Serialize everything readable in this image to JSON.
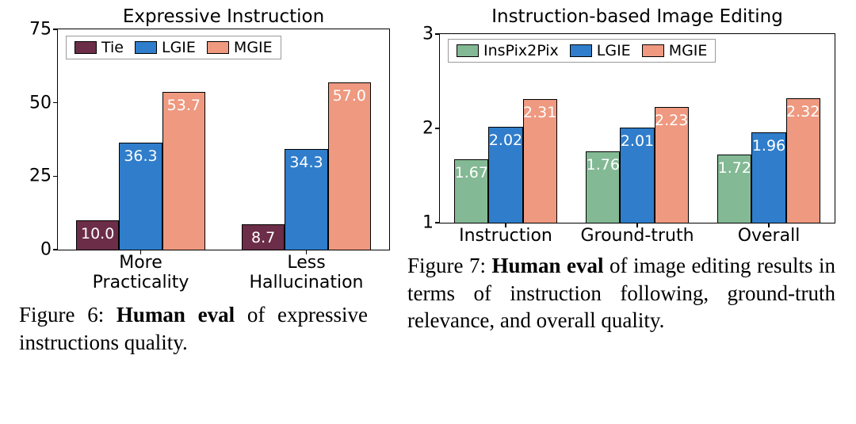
{
  "figure6": {
    "chart": {
      "type": "bar",
      "title": "Expressive Instruction",
      "title_fontsize": 23,
      "background_color": "#ffffff",
      "border_color": "#000000",
      "ylim": [
        0,
        75
      ],
      "yticks": [
        0,
        25,
        50,
        75
      ],
      "ytick_fontsize": 22,
      "categories": [
        "More\nPracticality",
        "Less\nHallucination"
      ],
      "xtick_fontsize": 22,
      "series": [
        {
          "label": "Tie",
          "color": "#6b2d47",
          "values": [
            10.0,
            8.7
          ],
          "value_labels": [
            "10.0",
            "8.7"
          ]
        },
        {
          "label": "LGIE",
          "color": "#2f7dcb",
          "values": [
            36.3,
            34.3
          ],
          "value_labels": [
            "36.3",
            "34.3"
          ]
        },
        {
          "label": "MGIE",
          "color": "#ee9980",
          "values": [
            53.7,
            57.0
          ],
          "value_labels": [
            "53.7",
            "57.0"
          ]
        }
      ],
      "bar_width_rel": 0.26,
      "bar_label_color": "#ffffff",
      "bar_label_fontsize": 19,
      "legend": {
        "position": "top-left-inside",
        "border_color": "#9a9a9a",
        "fontsize": 19
      }
    },
    "caption_prefix": "Figure 6: ",
    "caption_bold": "Human eval",
    "caption_rest": " of expressive instructions quality."
  },
  "figure7": {
    "chart": {
      "type": "bar",
      "title": "Instruction-based Image Editing",
      "title_fontsize": 23,
      "background_color": "#ffffff",
      "border_color": "#000000",
      "ylim": [
        1,
        3
      ],
      "yticks": [
        1,
        2,
        3
      ],
      "ytick_fontsize": 22,
      "categories": [
        "Instruction",
        "Ground-truth",
        "Overall"
      ],
      "xtick_fontsize": 22,
      "series": [
        {
          "label": "InsPix2Pix",
          "color": "#83b994",
          "values": [
            1.67,
            1.76,
            1.72
          ],
          "value_labels": [
            "1.67",
            "1.76",
            "1.72"
          ]
        },
        {
          "label": "LGIE",
          "color": "#2f7dcb",
          "values": [
            2.02,
            2.01,
            1.96
          ],
          "value_labels": [
            "2.02",
            "2.01",
            "1.96"
          ]
        },
        {
          "label": "MGIE",
          "color": "#ee9980",
          "values": [
            2.31,
            2.23,
            2.32
          ],
          "value_labels": [
            "2.31",
            "2.23",
            "2.32"
          ]
        }
      ],
      "bar_width_rel": 0.26,
      "bar_label_color": "#ffffff",
      "bar_label_fontsize": 19,
      "legend": {
        "position": "top-left-inside",
        "border_color": "#9a9a9a",
        "fontsize": 19
      }
    },
    "caption_prefix": "Figure 7: ",
    "caption_bold": "Human eval",
    "caption_rest": " of image editing results in terms of instruction following, ground-truth relevance, and overall quality."
  }
}
